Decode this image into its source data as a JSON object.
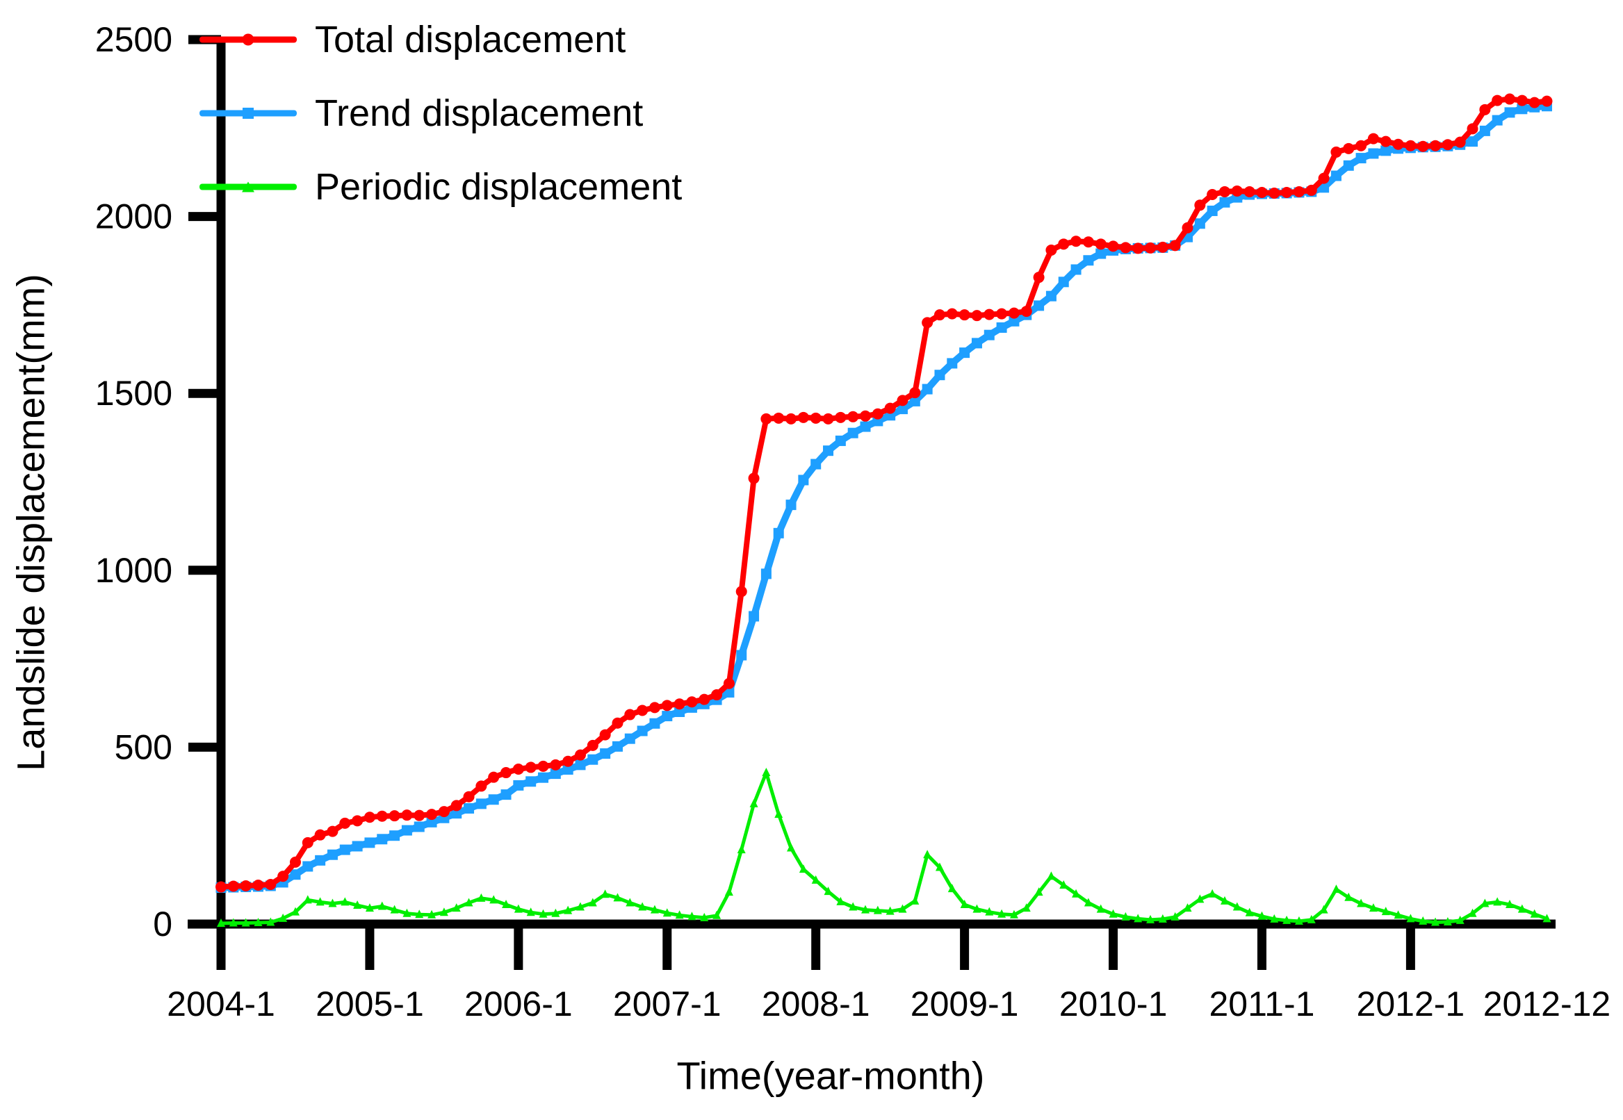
{
  "chart_data": {
    "type": "line",
    "title": "",
    "xlabel": "Time(year-month)",
    "ylabel": "Landslide displacement(mm)",
    "x_unit": "month",
    "x_start_label": "2004-1",
    "n_points": 108,
    "ylim": [
      0,
      2500
    ],
    "y_ticks": [
      0,
      500,
      1000,
      1500,
      2000,
      2500
    ],
    "x_ticks": [
      {
        "label": "2004-1",
        "month": 0,
        "tick": true
      },
      {
        "label": "2005-1",
        "month": 12,
        "tick": true
      },
      {
        "label": "2006-1",
        "month": 24,
        "tick": true
      },
      {
        "label": "2007-1",
        "month": 36,
        "tick": true
      },
      {
        "label": "2008-1",
        "month": 48,
        "tick": true
      },
      {
        "label": "2009-1",
        "month": 60,
        "tick": true
      },
      {
        "label": "2010-1",
        "month": 72,
        "tick": true
      },
      {
        "label": "2011-1",
        "month": 84,
        "tick": true
      },
      {
        "label": "2012-1",
        "month": 96,
        "tick": true
      },
      {
        "label": "2012-12",
        "month": 107,
        "tick": false
      }
    ],
    "grid": false,
    "legend_position": "top-left",
    "series": [
      {
        "name": "Total displacement",
        "color": "#ff0000",
        "marker": "circle",
        "values": [
          105,
          107,
          108,
          110,
          112,
          135,
          175,
          230,
          252,
          262,
          285,
          292,
          302,
          305,
          306,
          308,
          307,
          310,
          318,
          335,
          360,
          390,
          415,
          428,
          438,
          443,
          446,
          450,
          460,
          478,
          505,
          535,
          568,
          592,
          604,
          612,
          618,
          622,
          628,
          635,
          648,
          680,
          940,
          1260,
          1428,
          1430,
          1428,
          1432,
          1430,
          1428,
          1432,
          1434,
          1436,
          1442,
          1458,
          1480,
          1502,
          1700,
          1722,
          1725,
          1722,
          1720,
          1723,
          1725,
          1727,
          1732,
          1828,
          1905,
          1922,
          1930,
          1928,
          1922,
          1916,
          1912,
          1910,
          1911,
          1913,
          1918,
          1968,
          2032,
          2062,
          2070,
          2072,
          2070,
          2068,
          2066,
          2068,
          2070,
          2074,
          2108,
          2182,
          2192,
          2200,
          2220,
          2212,
          2204,
          2200,
          2198,
          2200,
          2203,
          2210,
          2248,
          2302,
          2328,
          2332,
          2328,
          2322,
          2326
        ]
      },
      {
        "name": "Trend displacement",
        "color": "#1e9fff",
        "marker": "square",
        "values": [
          103,
          104,
          105,
          106,
          108,
          118,
          140,
          163,
          180,
          196,
          210,
          220,
          230,
          240,
          250,
          265,
          275,
          288,
          300,
          313,
          327,
          340,
          352,
          366,
          392,
          403,
          414,
          425,
          437,
          450,
          465,
          482,
          502,
          524,
          546,
          567,
          588,
          600,
          612,
          622,
          634,
          655,
          760,
          870,
          990,
          1105,
          1185,
          1255,
          1300,
          1338,
          1366,
          1388,
          1406,
          1422,
          1438,
          1456,
          1478,
          1512,
          1552,
          1585,
          1615,
          1642,
          1665,
          1686,
          1704,
          1722,
          1748,
          1775,
          1815,
          1850,
          1876,
          1895,
          1904,
          1908,
          1910,
          1911,
          1912,
          1918,
          1942,
          1980,
          2016,
          2040,
          2054,
          2062,
          2064,
          2065,
          2066,
          2068,
          2070,
          2082,
          2115,
          2144,
          2165,
          2178,
          2186,
          2192,
          2194,
          2196,
          2197,
          2199,
          2203,
          2212,
          2242,
          2272,
          2294,
          2304,
          2309,
          2312
        ]
      },
      {
        "name": "Periodic displacement",
        "color": "#00ee00",
        "marker": "triangle",
        "values": [
          2,
          3,
          3,
          4,
          5,
          16,
          34,
          68,
          62,
          58,
          62,
          53,
          45,
          50,
          40,
          30,
          27,
          26,
          33,
          45,
          60,
          73,
          68,
          55,
          42,
          33,
          28,
          30,
          38,
          48,
          60,
          84,
          74,
          60,
          48,
          40,
          31,
          25,
          21,
          18,
          24,
          90,
          210,
          340,
          428,
          310,
          215,
          155,
          124,
          92,
          63,
          48,
          40,
          38,
          36,
          42,
          65,
          196,
          160,
          100,
          55,
          42,
          34,
          28,
          26,
          45,
          90,
          135,
          110,
          85,
          60,
          42,
          28,
          20,
          15,
          12,
          14,
          20,
          45,
          70,
          85,
          65,
          48,
          32,
          22,
          14,
          10,
          8,
          12,
          40,
          98,
          75,
          58,
          45,
          35,
          25,
          15,
          8,
          5,
          6,
          10,
          30,
          58,
          62,
          55,
          42,
          28,
          15
        ]
      }
    ]
  },
  "colors": {
    "axis": "#000000",
    "background": "#ffffff",
    "text": "#000000"
  }
}
